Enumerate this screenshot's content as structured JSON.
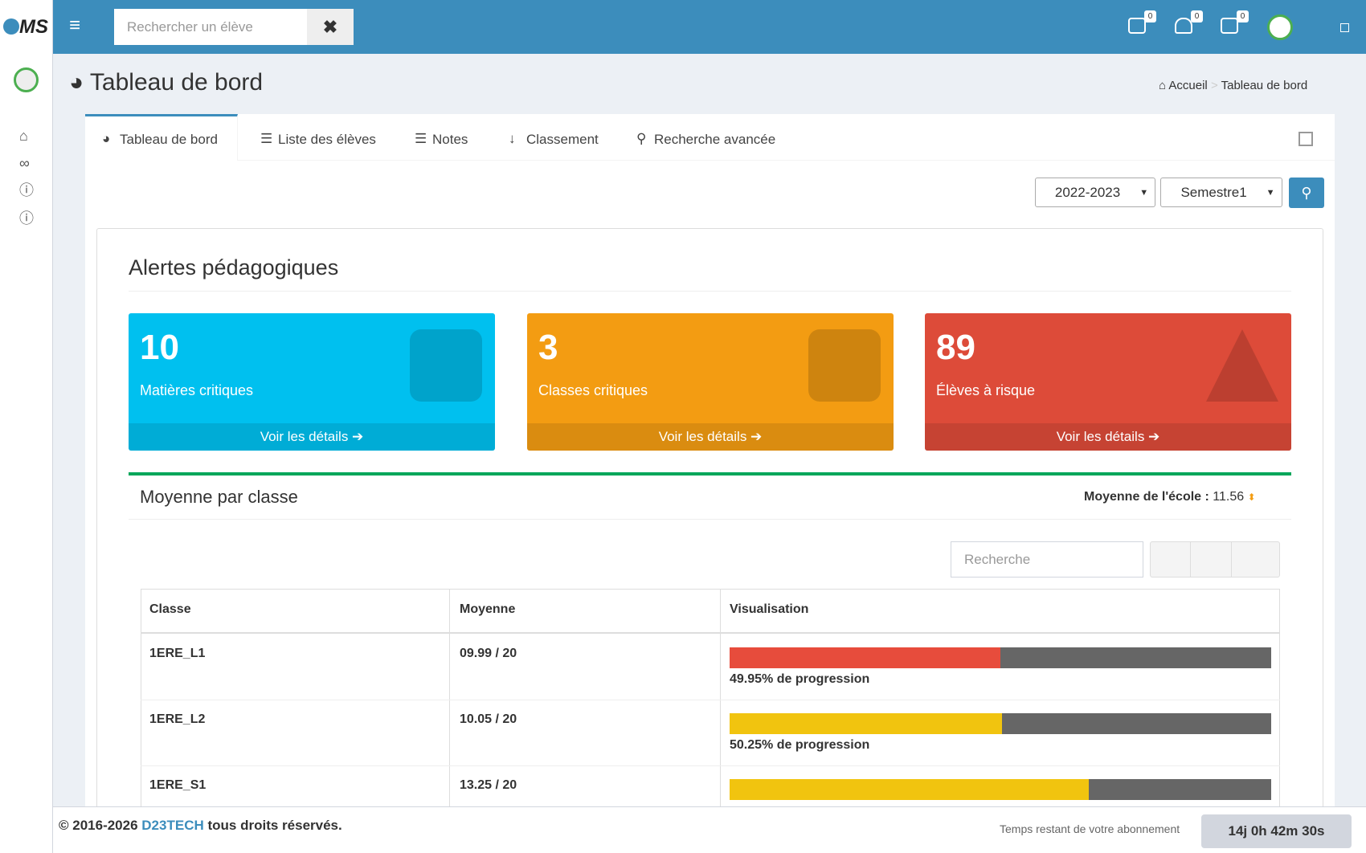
{
  "header": {
    "logo": "MS",
    "search_placeholder": "Rechercher un élève",
    "badges": [
      0,
      0,
      0
    ]
  },
  "page": {
    "title": "Tableau de bord",
    "breadcrumb": [
      "Accueil",
      "Tableau de bord"
    ]
  },
  "tabs": [
    "Tableau de bord",
    "Liste des élèves",
    "Notes",
    "Classement",
    "Recherche avancée"
  ],
  "filters": {
    "year": "2022-2023",
    "semester": "Semestre1"
  },
  "alerts": {
    "title": "Alertes pédagogiques",
    "cards": [
      {
        "count": 10,
        "label": "Matières critiques",
        "link": "Voir les détails",
        "color": "#00c0ef"
      },
      {
        "count": 3,
        "label": "Classes critiques",
        "link": "Voir les détails",
        "color": "#f39c12"
      },
      {
        "count": 89,
        "label": "Élèves à risque",
        "link": "Voir les détails",
        "color": "#dd4b39"
      }
    ]
  },
  "averages": {
    "title": "Moyenne par classe",
    "school_label": "Moyenne de l'école :",
    "school_value": 11.56,
    "search_placeholder": "Recherche",
    "columns": [
      "Classe",
      "Moyenne",
      "Visualisation"
    ],
    "rows": [
      {
        "classe": "1ERE_L1",
        "moyenne": "09.99 / 20",
        "progress": 49.95,
        "progress_label": "49.95% de progression",
        "color": "#e74c3c"
      },
      {
        "classe": "1ERE_L2",
        "moyenne": "10.05 / 20",
        "progress": 50.25,
        "progress_label": "50.25% de progression",
        "color": "#f1c40f"
      },
      {
        "classe": "1ERE_S1",
        "moyenne": "13.25 / 20",
        "progress": 66.25,
        "color": "#f1c40f"
      }
    ]
  },
  "footer": {
    "copyright": "© 2016-2026",
    "company": "D23TECH",
    "rights": "tous droits réservés.",
    "subscription_label": "Temps restant de votre abonnement",
    "subscription_time": "14j 0h 42m 30s"
  }
}
